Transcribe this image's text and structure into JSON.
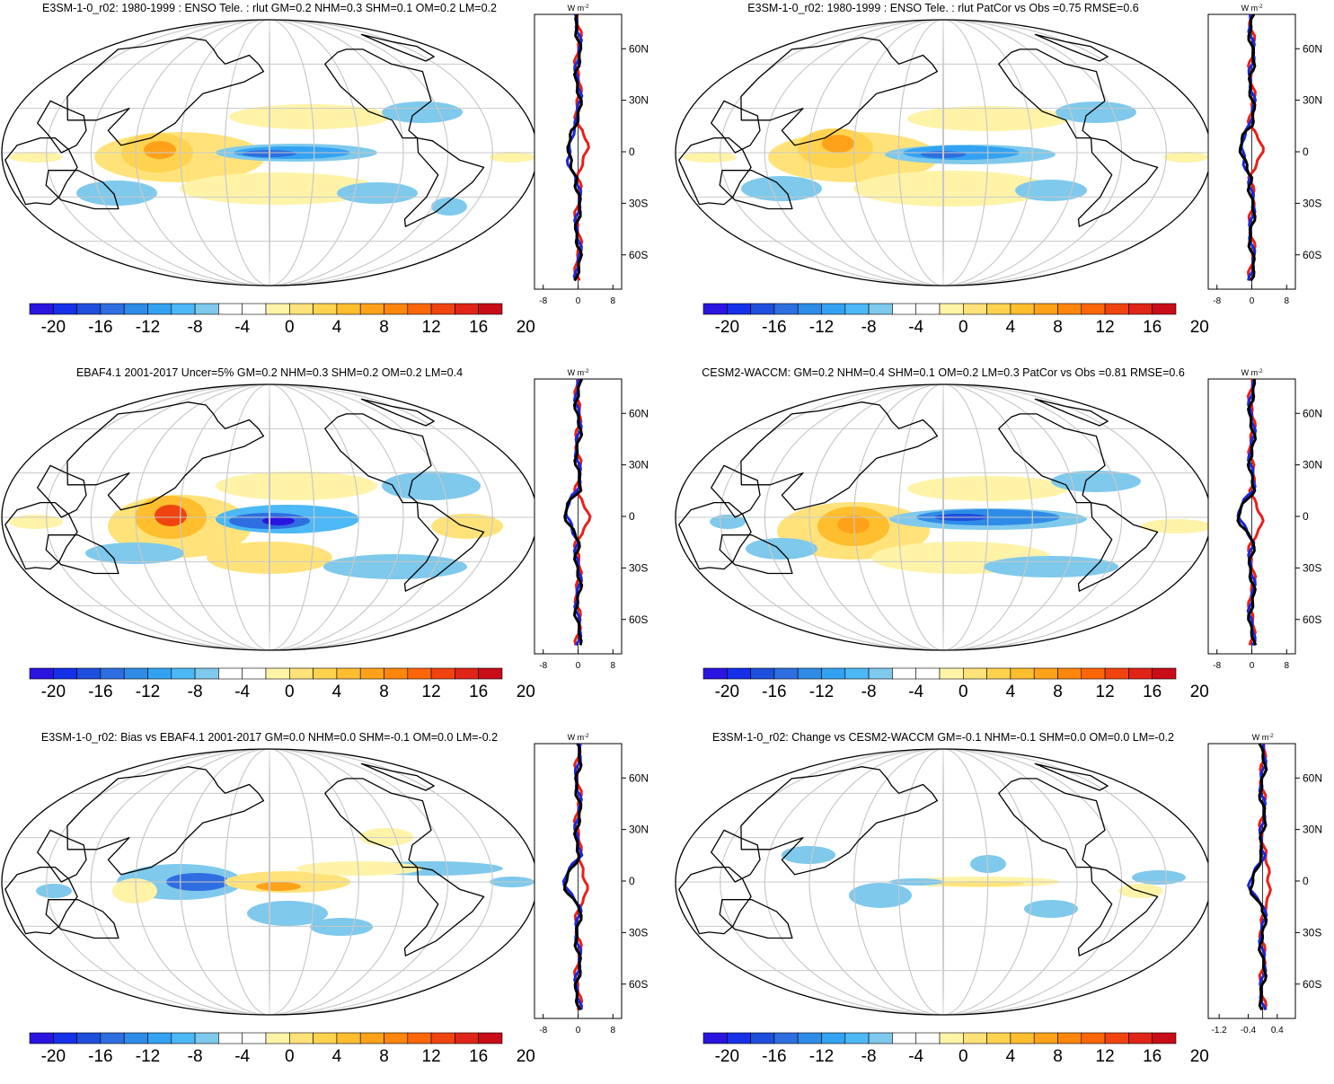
{
  "colorbar": {
    "colors": [
      "#2a14e0",
      "#1530e8",
      "#1e4fdc",
      "#2e6ee0",
      "#2e8ce8",
      "#33a2f2",
      "#4cb8f5",
      "#7ec9ec",
      "#ffffff",
      "#ffffff",
      "#fff3a8",
      "#ffe37a",
      "#ffd350",
      "#ffbe2e",
      "#ffa21a",
      "#ff860c",
      "#fb6608",
      "#f04410",
      "#e02418",
      "#c80c18"
    ],
    "tick_labels": [
      "-20",
      "-16",
      "-12",
      "-8",
      "-4",
      "0",
      "4",
      "8",
      "12",
      "16",
      "20"
    ]
  },
  "zonal_units": "W m",
  "zonal_units_exp": "-2",
  "lat_labels": [
    "60N",
    "30N",
    "0",
    "30S",
    "60S"
  ],
  "panels": [
    {
      "title": "E3SM-1-0_r02: 1980-1999 : ENSO Tele. : rlut GM=0.2 NHM=0.3 SHM=0.1 OM=0.2 LM=0.2",
      "x_ticks": [
        "-8",
        "0",
        "8"
      ],
      "x_range": [
        -10,
        10
      ],
      "lines": [
        "red",
        "blue",
        "black"
      ]
    },
    {
      "title": "E3SM-1-0_r02: 1980-1999 : ENSO Tele. : rlut PatCor vs Obs =0.75 RMSE=0.6",
      "x_ticks": [
        "-8",
        "0",
        "8"
      ],
      "x_range": [
        -10,
        10
      ],
      "lines": [
        "red",
        "blue",
        "black"
      ]
    },
    {
      "title": "EBAF4.1 2001-2017 Uncer=5% GM=0.2 NHM=0.3 SHM=0.2 OM=0.2 LM=0.4",
      "x_ticks": [
        "-8",
        "0",
        "8"
      ],
      "x_range": [
        -10,
        10
      ],
      "lines": [
        "red",
        "blue",
        "black"
      ]
    },
    {
      "title": "CESM2-WACCM: GM=0.2 NHM=0.4 SHM=0.1 OM=0.2 LM=0.3 PatCor vs Obs =0.81 RMSE=0.6",
      "x_ticks": [
        "-8",
        "0",
        "8"
      ],
      "x_range": [
        -10,
        10
      ],
      "lines": [
        "red",
        "blue",
        "black"
      ]
    },
    {
      "title": "E3SM-1-0_r02: Bias vs EBAF4.1 2001-2017 GM=0.0 NHM=0.0 SHM=-0.1 OM=0.0 LM=-0.2",
      "x_ticks": [
        "-8",
        "0",
        "8"
      ],
      "x_range": [
        -10,
        10
      ],
      "lines": [
        "red",
        "blue",
        "black"
      ]
    },
    {
      "title": "E3SM-1-0_r02: Change vs CESM2-WACCM GM=-0.1 NHM=-0.1 SHM=0.0 OM=0.0 LM=-0.2",
      "x_ticks": [
        "-1.2",
        "-0.4",
        "0.4"
      ],
      "x_range": [
        -1.5,
        0.9
      ],
      "lines": [
        "red",
        "blue",
        "black"
      ]
    }
  ]
}
